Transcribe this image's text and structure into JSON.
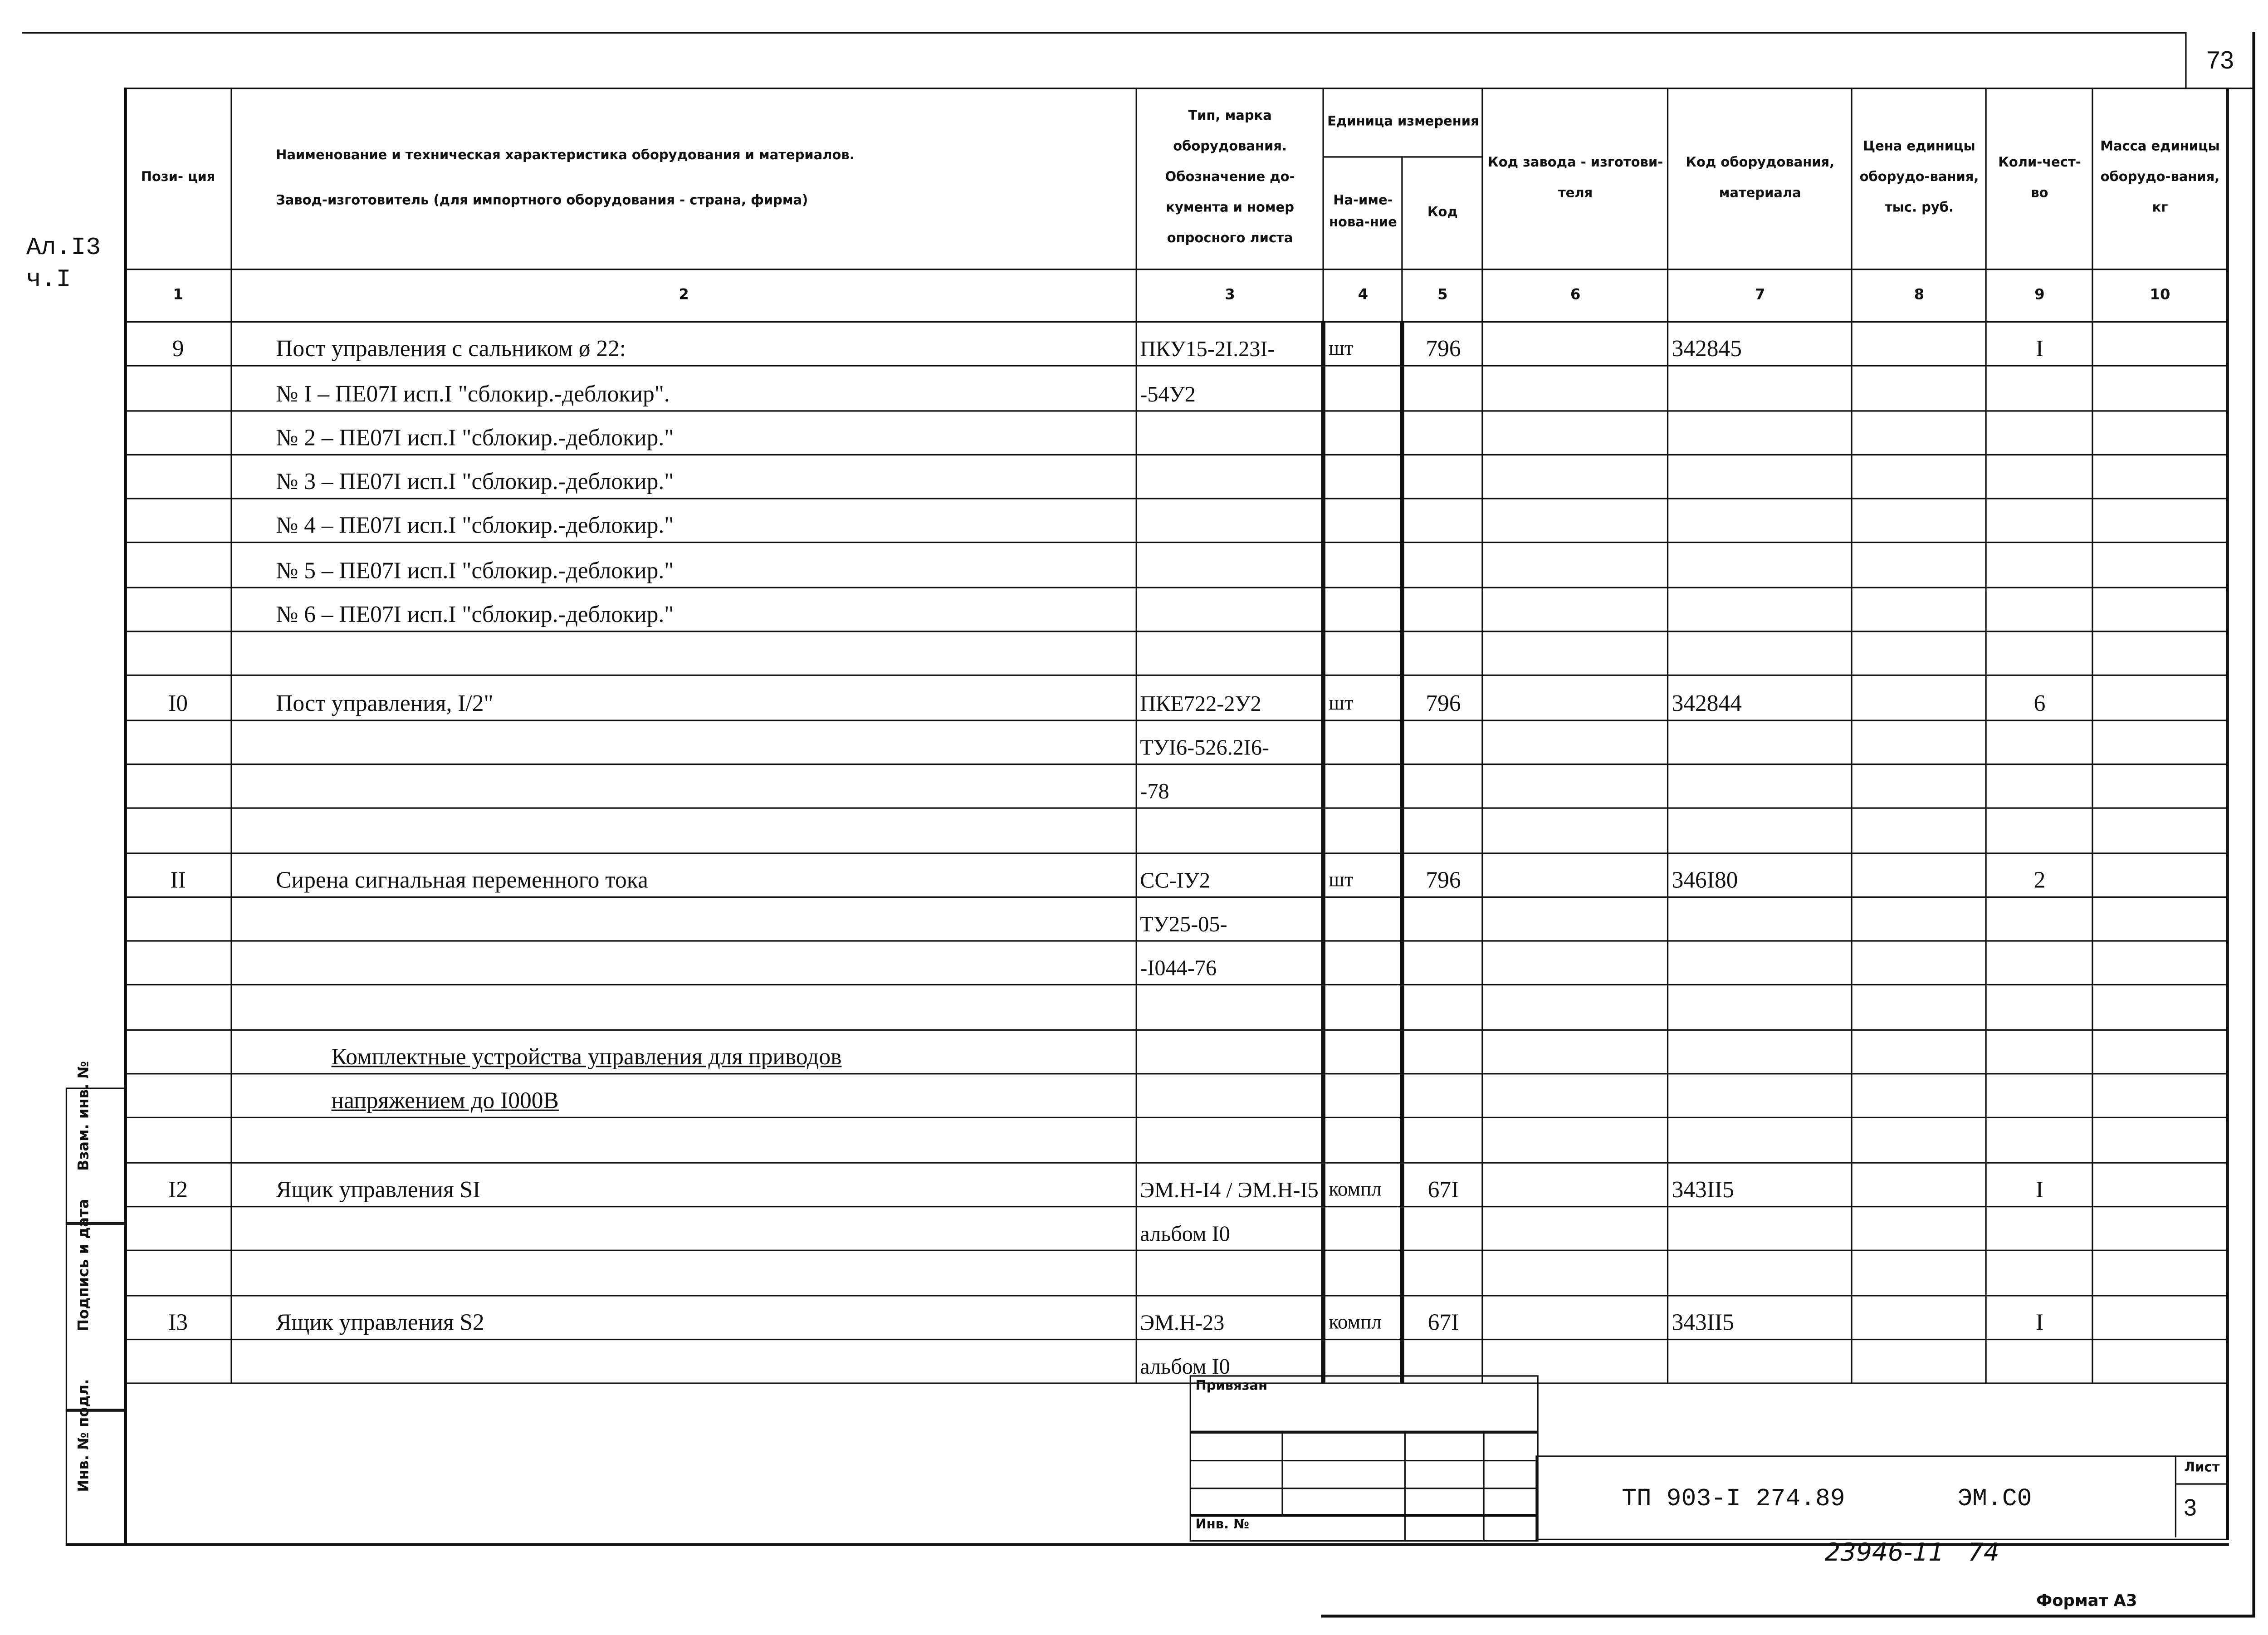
{
  "sheet_corner_number": "73",
  "side_note": [
    "Ал.I3",
    "ч.I"
  ],
  "headers": {
    "position": "Пози-\nция",
    "name_line1": "Наименование и техническая характеристика  оборудования и материалов.",
    "name_line2": "Завод-изготовитель  (для импортного оборудования -  страна, фирма)",
    "type": "Тип,  марка оборудования. Обозначение до-кумента и номер опросного листа",
    "unit": "Единица измерения",
    "unit_name": "На-име-нова-ние",
    "unit_code": "Код",
    "factory_code": "Код завода - изготови-теля",
    "equipment_code": "Код оборудования, материала",
    "price": "Цена единицы оборудо-вания, тыс. руб.",
    "quantity": "Коли-чест-во",
    "mass": "Масса единицы оборудо-вания, кг"
  },
  "column_numbers": [
    "1",
    "2",
    "3",
    "4",
    "5",
    "6",
    "7",
    "8",
    "9",
    "10"
  ],
  "rows": [
    [
      "9",
      "Пост управления с сальником ø 22:",
      "ПКУ15-2I.23I-",
      "шт",
      "796",
      "",
      "342845",
      "",
      "I",
      ""
    ],
    [
      "",
      "№ I – ПЕ07I исп.I \"сблокир.-деблокир\".",
      "-54У2",
      "",
      "",
      "",
      "",
      "",
      "",
      ""
    ],
    [
      "",
      "№ 2 – ПЕ07I исп.I \"сблокир.-деблокир.\"",
      "",
      "",
      "",
      "",
      "",
      "",
      "",
      ""
    ],
    [
      "",
      "№ 3 – ПЕ07I исп.I \"сблокир.-деблокир.\"",
      "",
      "",
      "",
      "",
      "",
      "",
      "",
      ""
    ],
    [
      "",
      "№ 4 – ПЕ07I исп.I \"сблокир.-деблокир.\"",
      "",
      "",
      "",
      "",
      "",
      "",
      "",
      ""
    ],
    [
      "",
      "№ 5 – ПЕ07I исп.I \"сблокир.-деблокир.\"",
      "",
      "",
      "",
      "",
      "",
      "",
      "",
      ""
    ],
    [
      "",
      "№ 6 – ПЕ07I исп.I \"сблокир.-деблокир.\"",
      "",
      "",
      "",
      "",
      "",
      "",
      "",
      ""
    ],
    [
      "",
      "",
      "",
      "",
      "",
      "",
      "",
      "",
      "",
      ""
    ],
    [
      "I0",
      "Пост управления, I/2\"",
      "ПКЕ722-2У2",
      "шт",
      "796",
      "",
      "342844",
      "",
      "6",
      ""
    ],
    [
      "",
      "",
      "ТУI6-526.2I6-",
      "",
      "",
      "",
      "",
      "",
      "",
      ""
    ],
    [
      "",
      "",
      "-78",
      "",
      "",
      "",
      "",
      "",
      "",
      ""
    ],
    [
      "",
      "",
      "",
      "",
      "",
      "",
      "",
      "",
      "",
      ""
    ],
    [
      "II",
      "Сирена сигнальная переменного тока",
      "СС-IУ2",
      "шт",
      "796",
      "",
      "346I80",
      "",
      "2",
      ""
    ],
    [
      "",
      "",
      "ТУ25-05-",
      "",
      "",
      "",
      "",
      "",
      "",
      ""
    ],
    [
      "",
      "",
      "-I044-76",
      "",
      "",
      "",
      "",
      "",
      "",
      ""
    ],
    [
      "",
      "",
      "",
      "",
      "",
      "",
      "",
      "",
      "",
      ""
    ],
    [
      "",
      "Комплектные устройства управления для приводов",
      "",
      "",
      "",
      "",
      "",
      "",
      "",
      ""
    ],
    [
      "",
      "напряжением до I000В",
      "",
      "",
      "",
      "",
      "",
      "",
      "",
      ""
    ],
    [
      "",
      "",
      "",
      "",
      "",
      "",
      "",
      "",
      "",
      ""
    ],
    [
      "I2",
      "Ящик управления SI",
      "ЭМ.Н-I4 / ЭМ.Н-I5",
      "компл",
      "67I",
      "",
      "343II5",
      "",
      "I",
      ""
    ],
    [
      "",
      "",
      "альбом I0",
      "",
      "",
      "",
      "",
      "",
      "",
      ""
    ],
    [
      "",
      "",
      "",
      "",
      "",
      "",
      "",
      "",
      "",
      ""
    ],
    [
      "I3",
      "Ящик управления S2",
      "ЭМ.Н-23",
      "компл",
      "67I",
      "",
      "343II5",
      "",
      "I",
      ""
    ],
    [
      "",
      "",
      "альбом I0",
      "",
      "",
      "",
      "",
      "",
      "",
      ""
    ]
  ],
  "side_stamp": {
    "replaced_inv": "Взам. инв. №",
    "signature_date": "Подпись и дата",
    "original_inv": "Инв. № подл."
  },
  "title_block": {
    "linked": "Привязан",
    "inv_no": "Инв. №",
    "designation": "ТП 903-I 274.89",
    "code": "ЭМ.С0",
    "sheet_label": "Лист",
    "sheet_number": "3"
  },
  "handwritten_note": "23946-11   74",
  "format": "Формат А3"
}
